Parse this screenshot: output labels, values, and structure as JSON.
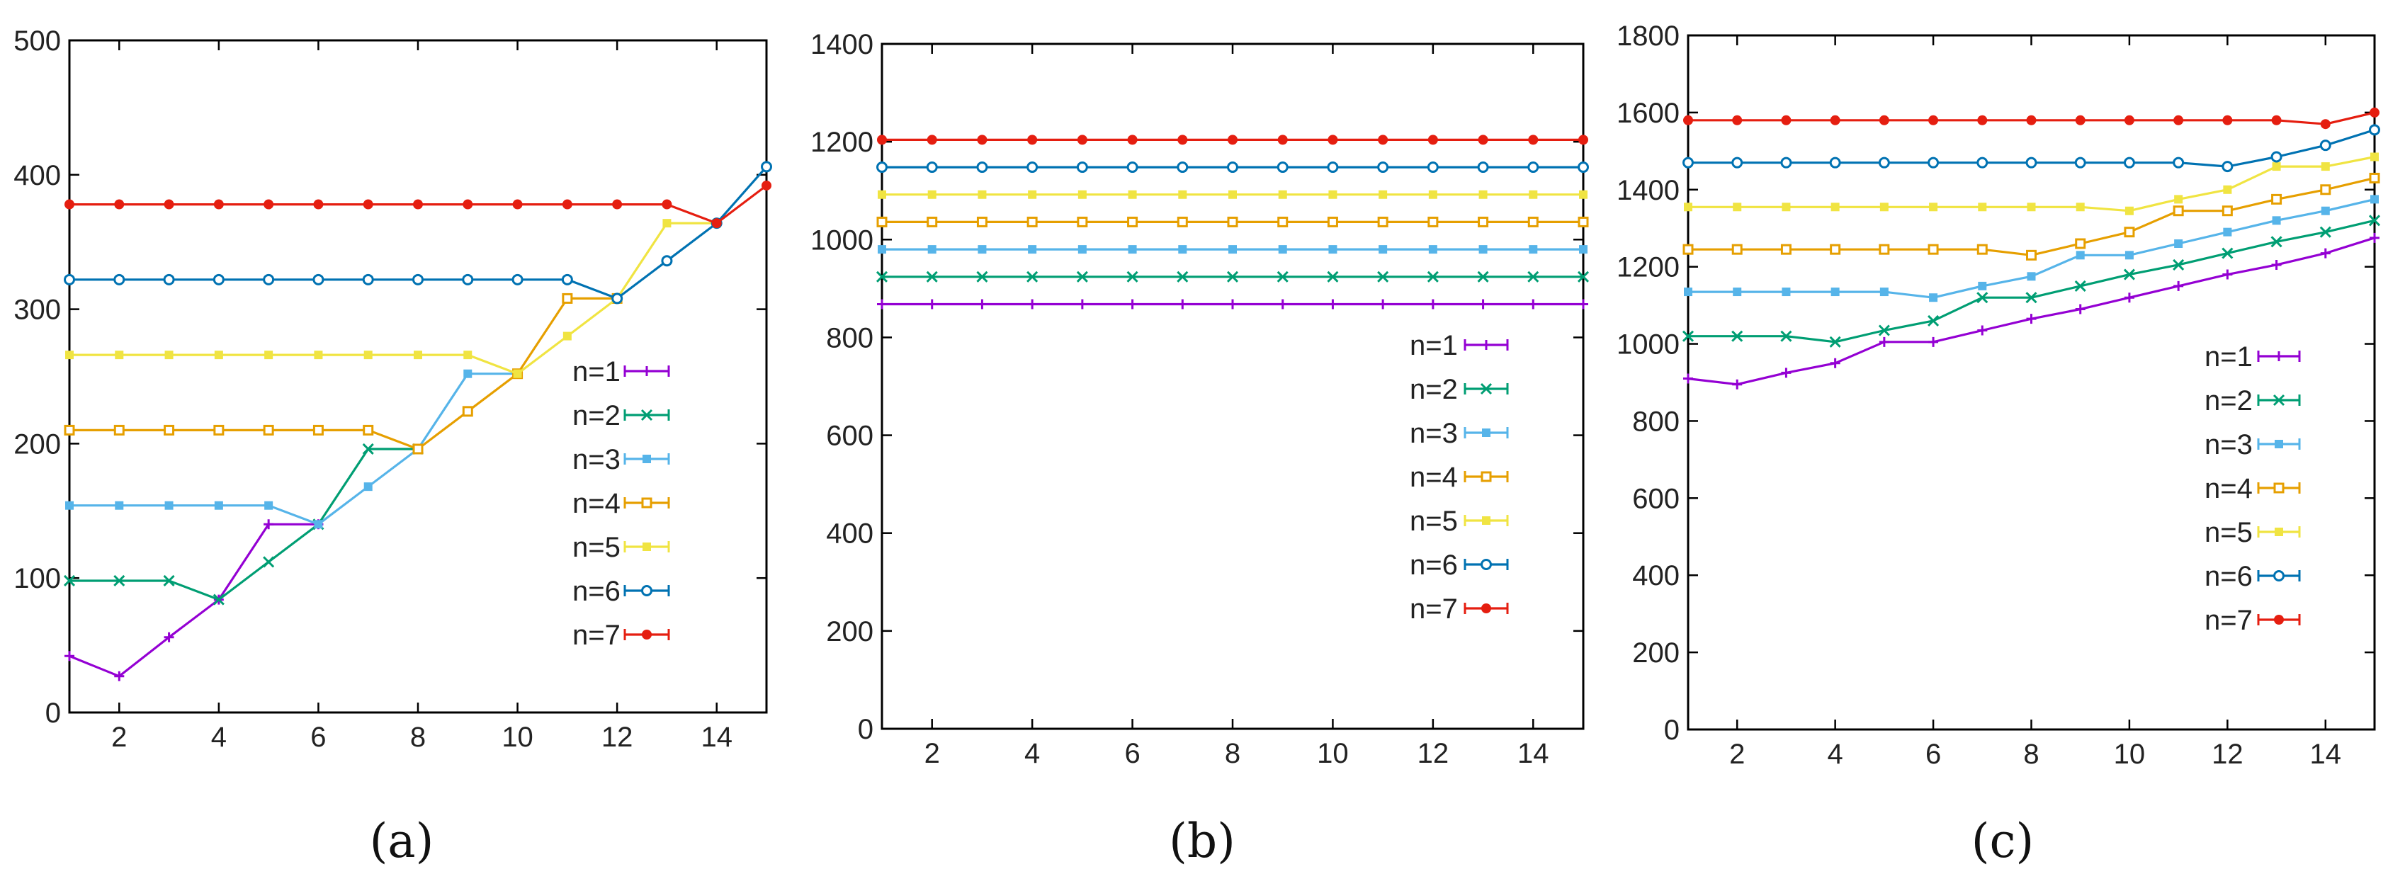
{
  "chart_data": [
    {
      "type": "line",
      "caption": "(a)",
      "x": [
        1,
        2,
        3,
        4,
        5,
        6,
        7,
        8,
        9,
        10,
        11,
        12,
        13,
        14,
        15
      ],
      "xlim": [
        1,
        15
      ],
      "ylim": [
        0,
        500
      ],
      "xticks": [
        2,
        4,
        6,
        8,
        10,
        12,
        14
      ],
      "yticks": [
        0,
        100,
        200,
        300,
        400,
        500
      ],
      "legend_position": "center-right",
      "series": [
        {
          "name": "n=1",
          "color": "#9400d3",
          "marker": "plus",
          "values": [
            42,
            27,
            56,
            84,
            140,
            140,
            null,
            null,
            null,
            null,
            null,
            null,
            null,
            null,
            null
          ]
        },
        {
          "name": "n=2",
          "color": "#009e73",
          "marker": "x",
          "values": [
            98,
            98,
            98,
            84,
            112,
            140,
            196,
            196,
            null,
            null,
            null,
            null,
            null,
            null,
            null
          ]
        },
        {
          "name": "n=3",
          "color": "#56b4e9",
          "marker": "square-filled",
          "values": [
            154,
            154,
            154,
            154,
            154,
            140,
            168,
            196,
            252,
            252,
            null,
            null,
            null,
            null,
            null
          ]
        },
        {
          "name": "n=4",
          "color": "#e69f00",
          "marker": "square-open",
          "values": [
            210,
            210,
            210,
            210,
            210,
            210,
            210,
            196,
            224,
            252,
            308,
            308,
            null,
            null,
            null
          ]
        },
        {
          "name": "n=5",
          "color": "#f0e442",
          "marker": "square-filled",
          "values": [
            266,
            266,
            266,
            266,
            266,
            266,
            266,
            266,
            266,
            252,
            280,
            308,
            364,
            364,
            null
          ]
        },
        {
          "name": "n=6",
          "color": "#0072b2",
          "marker": "circle-open",
          "values": [
            322,
            322,
            322,
            322,
            322,
            322,
            322,
            322,
            322,
            322,
            322,
            308,
            336,
            364,
            406
          ]
        },
        {
          "name": "n=7",
          "color": "#e51e10",
          "marker": "circle-filled",
          "values": [
            378,
            378,
            378,
            378,
            378,
            378,
            378,
            378,
            378,
            378,
            378,
            378,
            378,
            364,
            392
          ]
        }
      ]
    },
    {
      "type": "line",
      "caption": "(b)",
      "x": [
        1,
        2,
        3,
        4,
        5,
        6,
        7,
        8,
        9,
        10,
        11,
        12,
        13,
        14,
        15
      ],
      "xlim": [
        1,
        15
      ],
      "ylim": [
        0,
        1400
      ],
      "xticks": [
        2,
        4,
        6,
        8,
        10,
        12,
        14
      ],
      "yticks": [
        0,
        200,
        400,
        600,
        800,
        1000,
        1200,
        1400
      ],
      "legend_position": "center-right",
      "series": [
        {
          "name": "n=1",
          "color": "#9400d3",
          "marker": "plus",
          "values": [
            868,
            868,
            868,
            868,
            868,
            868,
            868,
            868,
            868,
            868,
            868,
            868,
            868,
            868,
            868
          ]
        },
        {
          "name": "n=2",
          "color": "#009e73",
          "marker": "x",
          "values": [
            924,
            924,
            924,
            924,
            924,
            924,
            924,
            924,
            924,
            924,
            924,
            924,
            924,
            924,
            924
          ]
        },
        {
          "name": "n=3",
          "color": "#56b4e9",
          "marker": "square-filled",
          "values": [
            980,
            980,
            980,
            980,
            980,
            980,
            980,
            980,
            980,
            980,
            980,
            980,
            980,
            980,
            980
          ]
        },
        {
          "name": "n=4",
          "color": "#e69f00",
          "marker": "square-open",
          "values": [
            1036,
            1036,
            1036,
            1036,
            1036,
            1036,
            1036,
            1036,
            1036,
            1036,
            1036,
            1036,
            1036,
            1036,
            1036
          ]
        },
        {
          "name": "n=5",
          "color": "#f0e442",
          "marker": "square-filled",
          "values": [
            1092,
            1092,
            1092,
            1092,
            1092,
            1092,
            1092,
            1092,
            1092,
            1092,
            1092,
            1092,
            1092,
            1092,
            1092
          ]
        },
        {
          "name": "n=6",
          "color": "#0072b2",
          "marker": "circle-open",
          "values": [
            1148,
            1148,
            1148,
            1148,
            1148,
            1148,
            1148,
            1148,
            1148,
            1148,
            1148,
            1148,
            1148,
            1148,
            1148
          ]
        },
        {
          "name": "n=7",
          "color": "#e51e10",
          "marker": "circle-filled",
          "values": [
            1204,
            1204,
            1204,
            1204,
            1204,
            1204,
            1204,
            1204,
            1204,
            1204,
            1204,
            1204,
            1204,
            1204,
            1204
          ]
        }
      ]
    },
    {
      "type": "line",
      "caption": "(c)",
      "x": [
        1,
        2,
        3,
        4,
        5,
        6,
        7,
        8,
        9,
        10,
        11,
        12,
        13,
        14,
        15
      ],
      "xlim": [
        1,
        15
      ],
      "ylim": [
        0,
        1800
      ],
      "xticks": [
        2,
        4,
        6,
        8,
        10,
        12,
        14
      ],
      "yticks": [
        0,
        200,
        400,
        600,
        800,
        1000,
        1200,
        1400,
        1600,
        1800
      ],
      "legend_position": "center-right",
      "series": [
        {
          "name": "n=1",
          "color": "#9400d3",
          "marker": "plus",
          "values": [
            910,
            895,
            925,
            950,
            1005,
            1005,
            1035,
            1065,
            1090,
            1120,
            1150,
            1180,
            1205,
            1235,
            1275
          ]
        },
        {
          "name": "n=2",
          "color": "#009e73",
          "marker": "x",
          "values": [
            1020,
            1020,
            1020,
            1005,
            1035,
            1060,
            1120,
            1120,
            1150,
            1180,
            1205,
            1235,
            1265,
            1290,
            1320
          ]
        },
        {
          "name": "n=3",
          "color": "#56b4e9",
          "marker": "square-filled",
          "values": [
            1135,
            1135,
            1135,
            1135,
            1135,
            1120,
            1150,
            1175,
            1230,
            1230,
            1260,
            1290,
            1320,
            1345,
            1375
          ]
        },
        {
          "name": "n=4",
          "color": "#e69f00",
          "marker": "square-open",
          "values": [
            1245,
            1245,
            1245,
            1245,
            1245,
            1245,
            1245,
            1230,
            1260,
            1290,
            1345,
            1345,
            1375,
            1400,
            1430
          ]
        },
        {
          "name": "n=5",
          "color": "#f0e442",
          "marker": "square-filled",
          "values": [
            1355,
            1355,
            1355,
            1355,
            1355,
            1355,
            1355,
            1355,
            1355,
            1345,
            1375,
            1400,
            1460,
            1460,
            1485
          ]
        },
        {
          "name": "n=6",
          "color": "#0072b2",
          "marker": "circle-open",
          "values": [
            1470,
            1470,
            1470,
            1470,
            1470,
            1470,
            1470,
            1470,
            1470,
            1470,
            1470,
            1460,
            1485,
            1515,
            1555
          ]
        },
        {
          "name": "n=7",
          "color": "#e51e10",
          "marker": "circle-filled",
          "values": [
            1580,
            1580,
            1580,
            1580,
            1580,
            1580,
            1580,
            1580,
            1580,
            1580,
            1580,
            1580,
            1580,
            1570,
            1600
          ]
        }
      ]
    }
  ]
}
